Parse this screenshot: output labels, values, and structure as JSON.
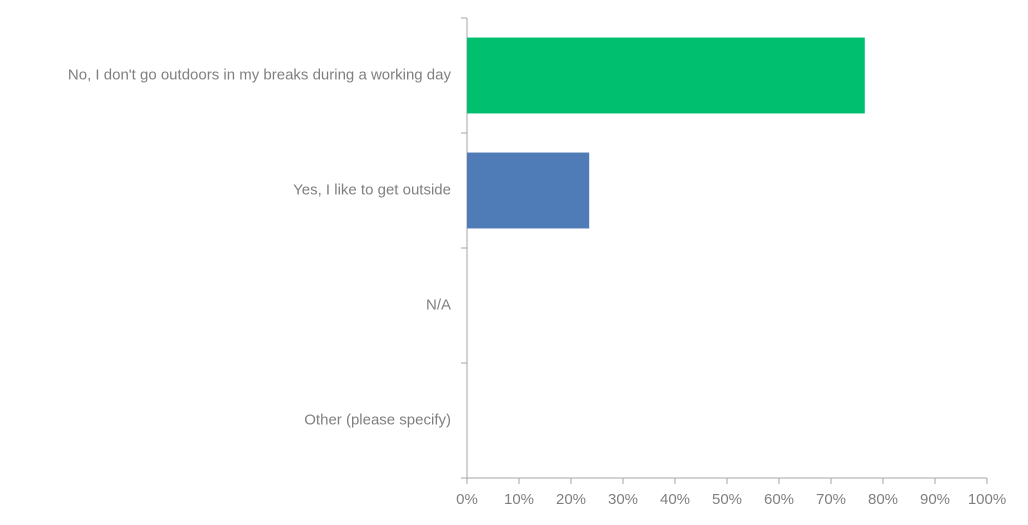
{
  "chart_data": {
    "type": "hbar",
    "categories": [
      "No, I don't go outdoors in my breaks during a working day",
      "Yes, I like to get outside",
      "N/A",
      "Other (please specify)"
    ],
    "values": [
      76.5,
      23.5,
      0,
      0
    ],
    "colors": [
      "#00bf6f",
      "#4f7bb7",
      "#4f7bb7",
      "#4f7bb7"
    ],
    "xlim": [
      0,
      100
    ],
    "xticks": [
      {
        "value": 0,
        "label": "0%"
      },
      {
        "value": 10,
        "label": "10%"
      },
      {
        "value": 20,
        "label": "20%"
      },
      {
        "value": 30,
        "label": "30%"
      },
      {
        "value": 40,
        "label": "40%"
      },
      {
        "value": 50,
        "label": "50%"
      },
      {
        "value": 60,
        "label": "60%"
      },
      {
        "value": 70,
        "label": "70%"
      },
      {
        "value": 80,
        "label": "80%"
      },
      {
        "value": 90,
        "label": "90%"
      },
      {
        "value": 100,
        "label": "100%"
      }
    ],
    "grid": false
  }
}
